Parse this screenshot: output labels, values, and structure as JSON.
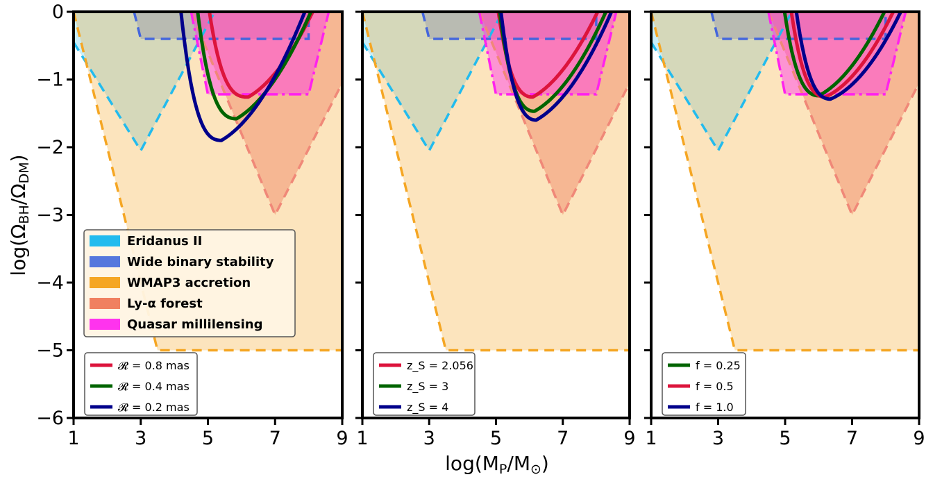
{
  "chart_data": {
    "type": "area",
    "xlabel": "log(M_P/M_⊙)",
    "ylabel": "log(Ω_BH/Ω_DM)",
    "xlim": [
      1,
      9
    ],
    "ylim": [
      -6,
      0
    ],
    "x_ticks": [
      1,
      3,
      5,
      7,
      9
    ],
    "y_ticks": [
      0,
      -1,
      -2,
      -3,
      -4,
      -5,
      -6
    ],
    "x_tick_labels": [
      "1",
      "3",
      "5",
      "7",
      "9"
    ],
    "y_tick_labels": [
      "0",
      "−1",
      "−2",
      "−3",
      "−4",
      "−5",
      "−6"
    ],
    "constraints": [
      {
        "name": "Eridanus II",
        "fill": "#22bbee",
        "edge": "#22bbee",
        "fill_opacity": 0.25,
        "dash": "14,9",
        "polygon": [
          [
            1,
            -0.45
          ],
          [
            3,
            -2.05
          ],
          [
            5.2,
            0
          ],
          [
            1,
            0
          ]
        ]
      },
      {
        "name": "Wide binary stability",
        "fill": "#5577dd",
        "edge": "#4466dd",
        "fill_opacity": 0.35,
        "dash": "14,9",
        "polygon": [
          [
            2.8,
            0
          ],
          [
            3,
            -0.4
          ],
          [
            8,
            -0.4
          ],
          [
            8,
            0
          ]
        ]
      },
      {
        "name": "WMAP3 accretion",
        "fill": "#f5a623",
        "edge": "#f5a623",
        "fill_opacity": 0.3,
        "dash": "14,9",
        "polygon": [
          [
            1,
            0
          ],
          [
            3.5,
            -5
          ],
          [
            9,
            -5
          ],
          [
            9,
            0
          ]
        ]
      },
      {
        "name": "Ly-α forest",
        "fill": "#f08060",
        "edge": "#f08878",
        "fill_opacity": 0.45,
        "dash": "14,9",
        "polygon": [
          [
            4.5,
            0
          ],
          [
            7,
            -3
          ],
          [
            9,
            -1.05
          ],
          [
            9,
            0
          ]
        ]
      },
      {
        "name": "Quasar millilensing",
        "fill": "#ff33ee",
        "edge": "#ff22ee",
        "fill_opacity": 0.45,
        "dash": "18,6,4,6",
        "polygon": [
          [
            4.5,
            0
          ],
          [
            5,
            -1.22
          ],
          [
            8,
            -1.22
          ],
          [
            8.6,
            0
          ]
        ]
      }
    ],
    "panels": [
      {
        "legend_labels": [
          "𝓡 = 0.8 mas",
          "𝓡 = 0.4 mas",
          "𝓡 = 0.2 mas"
        ],
        "series": [
          {
            "color": "#dc143c",
            "min_x": 6.2,
            "min_y": -1.26,
            "left_a": 1.2,
            "left_b": 0.16,
            "right": 0.52
          },
          {
            "color": "#006400",
            "min_x": 5.85,
            "min_y": -1.58,
            "left_a": 1.35,
            "left_b": 0.3,
            "right": 0.52
          },
          {
            "color": "#00008b",
            "min_x": 5.4,
            "min_y": -1.9,
            "left_a": 1.45,
            "left_b": 0.32,
            "right": 0.52
          }
        ]
      },
      {
        "legend_labels": [
          "z_S = 2.056",
          "z_S = 3",
          "z_S = 4"
        ],
        "series": [
          {
            "color": "#dc143c",
            "min_x": 6.1,
            "min_y": -1.26,
            "left_a": 1.3,
            "left_b": 0.45,
            "right": 0.5
          },
          {
            "color": "#006400",
            "min_x": 6.15,
            "min_y": -1.47,
            "left_a": 1.4,
            "left_b": 0.55,
            "right": 0.5
          },
          {
            "color": "#00008b",
            "min_x": 6.2,
            "min_y": -1.6,
            "left_a": 1.45,
            "left_b": 0.6,
            "right": 0.5
          }
        ]
      },
      {
        "legend_labels": [
          "f = 0.25",
          "f = 0.5",
          "f = 1.0"
        ],
        "series": [
          {
            "color": "#006400",
            "min_x": 6.0,
            "min_y": -1.24,
            "left_a": 1.25,
            "left_b": 0.5,
            "right": 0.46
          },
          {
            "color": "#dc143c",
            "min_x": 6.2,
            "min_y": -1.26,
            "left_a": 1.3,
            "left_b": 0.5,
            "right": 0.42
          },
          {
            "color": "#00008b",
            "min_x": 6.35,
            "min_y": -1.29,
            "left_a": 1.35,
            "left_b": 0.5,
            "right": 0.38
          }
        ]
      }
    ]
  }
}
